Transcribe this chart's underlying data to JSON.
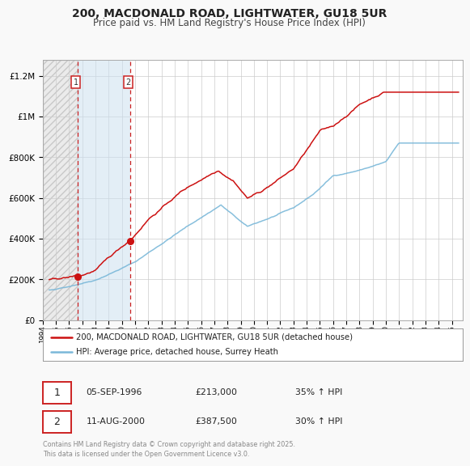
{
  "title": "200, MACDONALD ROAD, LIGHTWATER, GU18 5UR",
  "subtitle": "Price paid vs. HM Land Registry's House Price Index (HPI)",
  "title_fontsize": 10,
  "subtitle_fontsize": 8.5,
  "legend_line1": "200, MACDONALD ROAD, LIGHTWATER, GU18 5UR (detached house)",
  "legend_line2": "HPI: Average price, detached house, Surrey Heath",
  "sale1_date": "05-SEP-1996",
  "sale1_price": "£213,000",
  "sale1_hpi": "35% ↑ HPI",
  "sale2_date": "11-AUG-2000",
  "sale2_price": "£387,500",
  "sale2_hpi": "30% ↑ HPI",
  "footer": "Contains HM Land Registry data © Crown copyright and database right 2025.\nThis data is licensed under the Open Government Licence v3.0.",
  "sale1_x": 1996.67,
  "sale1_y": 213000,
  "sale2_x": 2000.61,
  "sale2_y": 387500,
  "vline1_x": 1996.67,
  "vline2_x": 2000.61,
  "shade_start": 1996.67,
  "shade_end": 2000.61,
  "xlim": [
    1994.0,
    2025.8
  ],
  "ylim": [
    0,
    1280000
  ],
  "yticks": [
    0,
    200000,
    400000,
    600000,
    800000,
    1000000,
    1200000
  ],
  "ytick_labels": [
    "£0",
    "£200K",
    "£400K",
    "£600K",
    "£800K",
    "£1M",
    "£1.2M"
  ],
  "hpi_color": "#7ab8d9",
  "price_color": "#cc1111",
  "background_color": "#f9f9f9",
  "plot_bg_color": "#ffffff",
  "grid_color": "#cccccc",
  "shade_color": "#cce0f0",
  "vline_color": "#cc2222",
  "marker_color": "#cc1111",
  "hatch_color": "#cccccc"
}
